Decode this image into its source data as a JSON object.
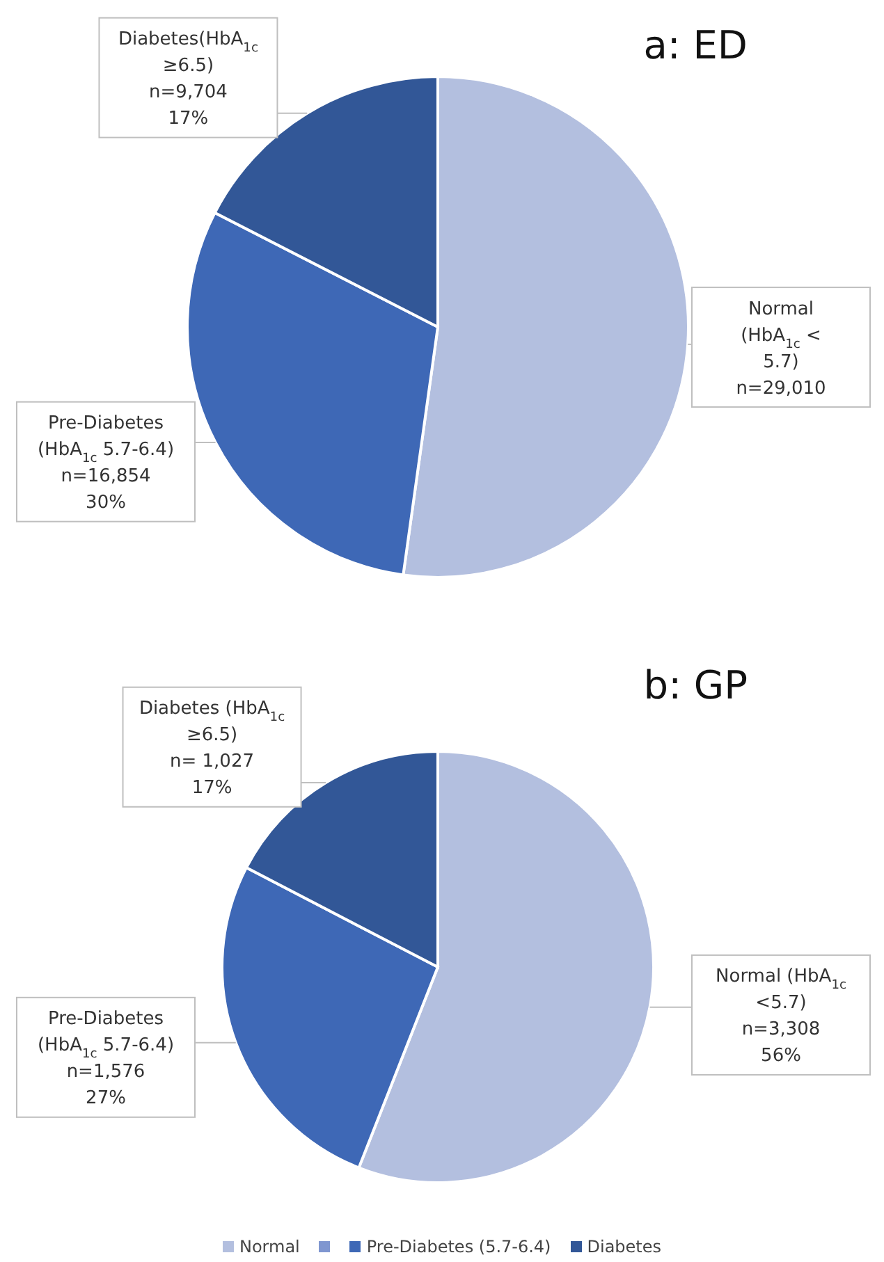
{
  "chart_data": [
    {
      "type": "pie",
      "title": "a: ED",
      "categories": [
        null,
        null,
        null
      ],
      "values": [
        29010,
        16854,
        9704
      ],
      "colors": [
        "#b3bfdf",
        "#3e68b6",
        "#325797"
      ],
      "value_labels": [
        "Normal\n(HbA$_{1c}$ <\n5.7)\nn=29,010",
        "Pre-Diabetes\n(HbA$_{1c}$ 5.7-6.4)\nn=16,854\n30%",
        "Diabetes(HbA$_{1c}$\n≥6.5)\nn=9,704\n17%"
      ],
      "legend": false
    },
    {
      "type": "pie",
      "title": "b: GP",
      "categories": [
        "Normal",
        null,
        "Pre-Diabetes (5.7-6.4)",
        "Diabetes"
      ],
      "values": [
        3308,
        0,
        1576,
        1027
      ],
      "colors": [
        "#b3bfdf",
        "#7f96d0",
        "#3e68b6",
        "#325797"
      ],
      "value_labels": [
        "Normal (HbA$_{1c}$\n<5.7)\nn=3,308\n56%",
        null,
        "Pre-Diabetes\n(HbA$_{1c}$ 5.7-6.4)\nn=1,576\n27%",
        "Diabetes (HbA$_{1c}$\n≥6.5)\nn= 1,027\n17%"
      ],
      "legend": "bottom"
    }
  ]
}
